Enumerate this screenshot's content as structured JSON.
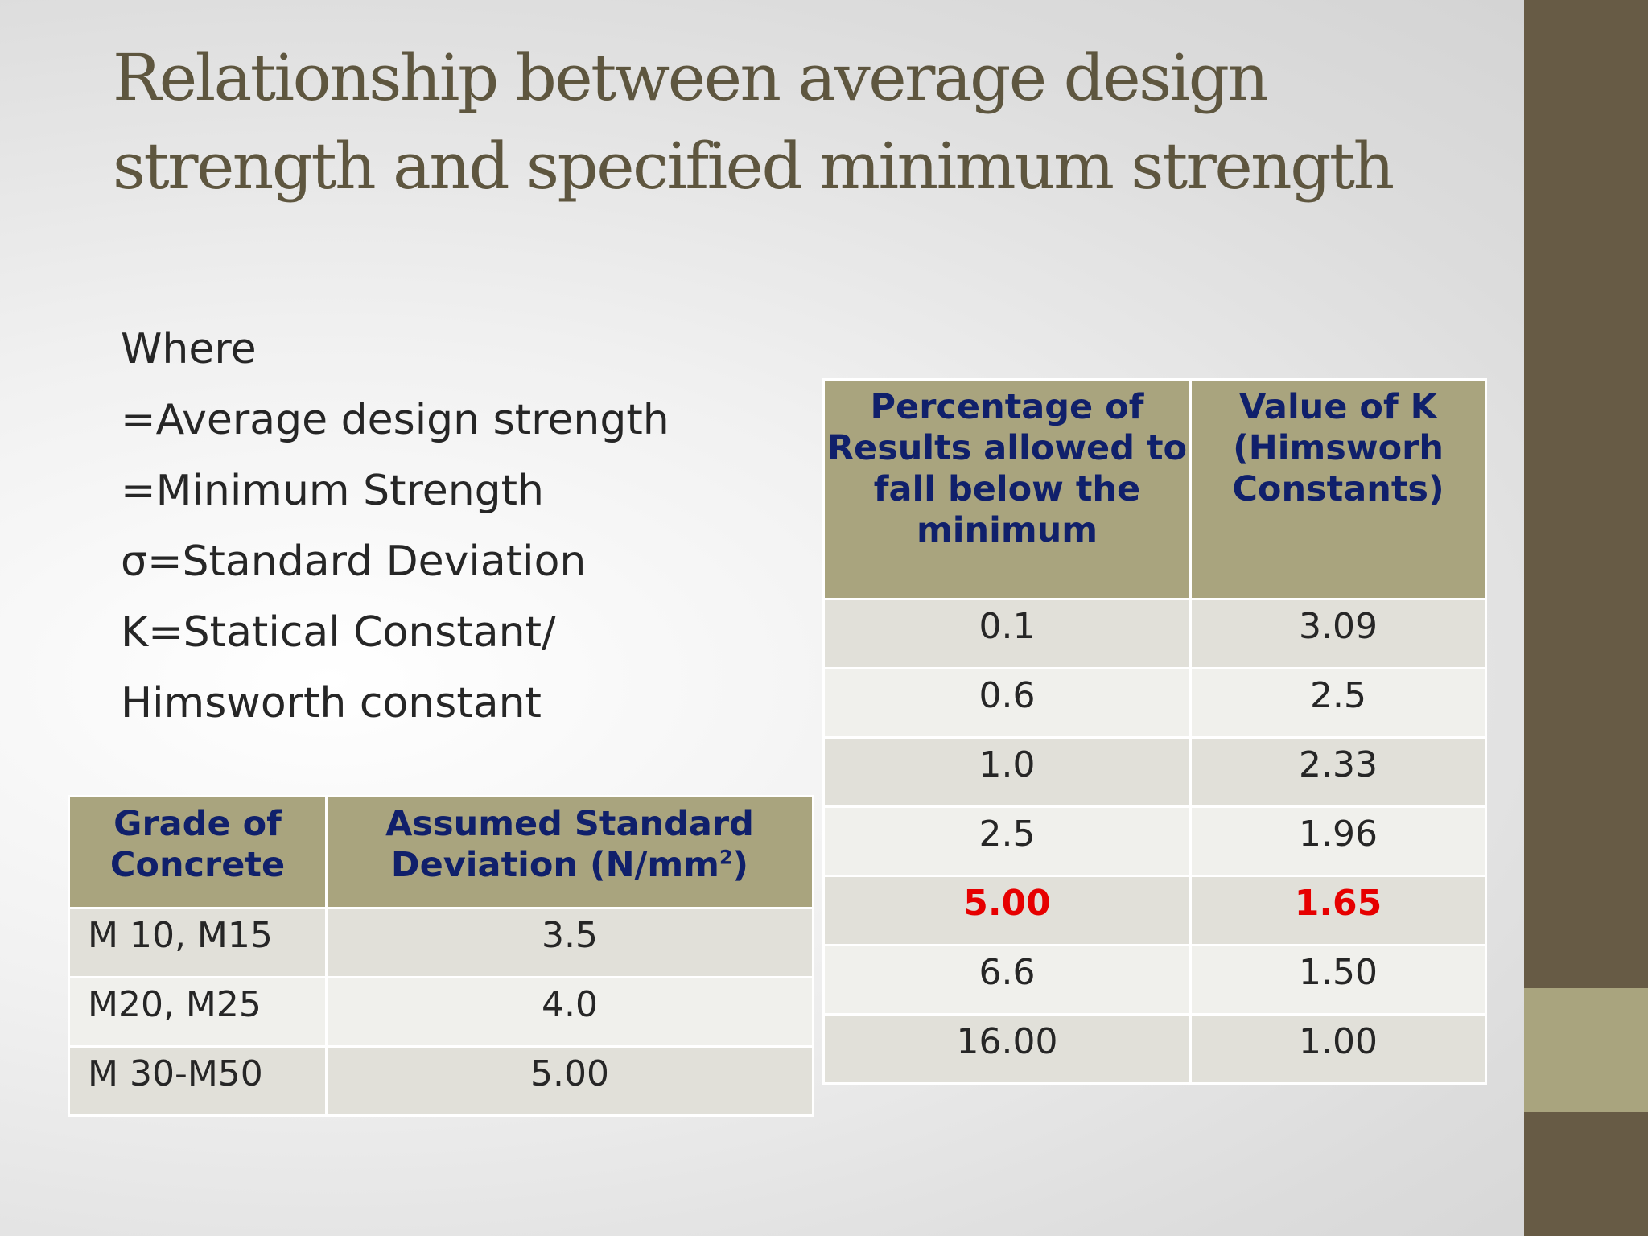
{
  "title": "Relationship between average design strength and specified minimum strength",
  "definitions": [
    "Where",
    "=Average design strength",
    "=Minimum Strength",
    "σ=Standard Deviation",
    "K=Statical Constant/",
    "Himsworth constant"
  ],
  "k_table": {
    "headers": [
      "Percentage of Results allowed to fall below the minimum",
      "Value of K (Himsworh Constants)"
    ],
    "rows": [
      [
        "0.1",
        "3.09"
      ],
      [
        "0.6",
        "2.5"
      ],
      [
        "1.0",
        "2.33"
      ],
      [
        "2.5",
        "1.96"
      ],
      [
        "5.00",
        "1.65"
      ],
      [
        "6.6",
        "1.50"
      ],
      [
        "16.00",
        "1.00"
      ]
    ],
    "highlight_color": "#e60000"
  },
  "sd_table": {
    "headers": [
      "Grade of Concrete",
      "Assumed Standard Deviation (N/mm",
      "2",
      ")"
    ],
    "rows": [
      [
        "M 10, M15",
        "3.5"
      ],
      [
        "M20, M25",
        "4.0"
      ],
      [
        "M 30-M50",
        "5.00"
      ]
    ]
  },
  "colors": {
    "sidebar": "#675b45",
    "sidebar_accent": "#a9a47e",
    "header_fill": "#a9a47e",
    "header_text": "#10206b",
    "title": "#5e563f"
  }
}
